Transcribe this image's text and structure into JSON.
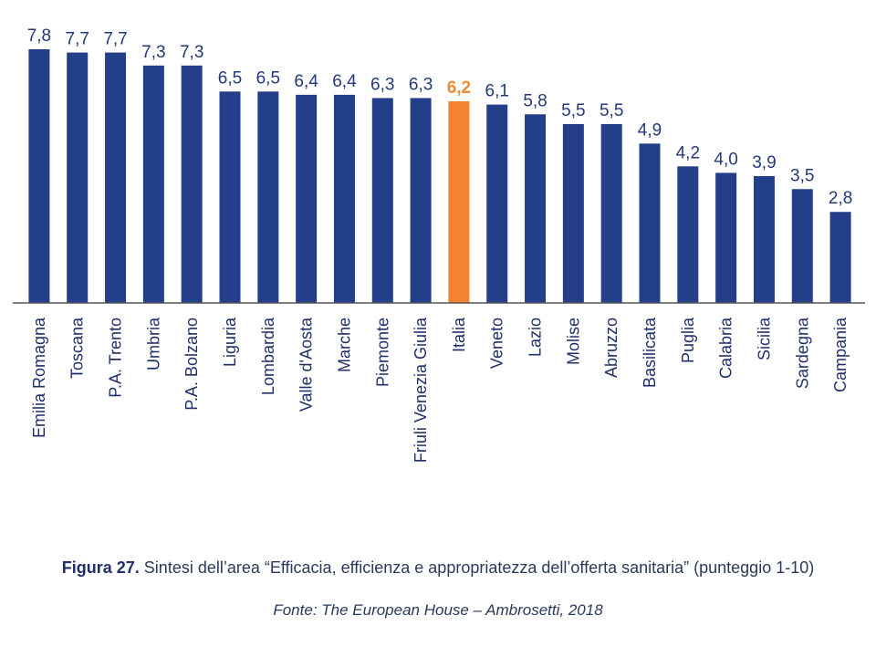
{
  "chart_data": {
    "type": "bar",
    "categories": [
      "Emilia Romagna",
      "Toscana",
      "P.A. Trento",
      "Umbria",
      "P.A. Bolzano",
      "Liguria",
      "Lombardia",
      "Valle d'Aosta",
      "Marche",
      "Piemonte",
      "Friuli Venezia Giulia",
      "Italia",
      "Veneto",
      "Lazio",
      "Molise",
      "Abruzzo",
      "Basilicata",
      "Puglia",
      "Calabria",
      "Sicilia",
      "Sardegna",
      "Campania"
    ],
    "values": [
      7.8,
      7.7,
      7.7,
      7.3,
      7.3,
      6.5,
      6.5,
      6.4,
      6.4,
      6.3,
      6.3,
      6.2,
      6.1,
      5.8,
      5.5,
      5.5,
      4.9,
      4.2,
      4.0,
      3.9,
      3.5,
      2.8
    ],
    "value_labels": [
      "7,8",
      "7,7",
      "7,7",
      "7,3",
      "7,3",
      "6,5",
      "6,5",
      "6,4",
      "6,4",
      "6,3",
      "6,3",
      "6,2",
      "6,1",
      "5,8",
      "5,5",
      "5,5",
      "4,9",
      "4,2",
      "4,0",
      "3,9",
      "3,5",
      "2,8"
    ],
    "highlight_category": "Italia",
    "colors": {
      "bar": "#233f8a",
      "highlight": "#f4822f",
      "axis": "#555555"
    },
    "ylim": [
      0,
      7.8
    ],
    "grid": false,
    "legend": "none"
  },
  "caption": {
    "figure_label": "Figura 27.",
    "text": "Sintesi dell’area “Efficacia, efficienza e appropriatezza dell’offerta sanitaria” (punteggio 1-10)",
    "source": "Fonte: The European House – Ambrosetti, 2018"
  }
}
